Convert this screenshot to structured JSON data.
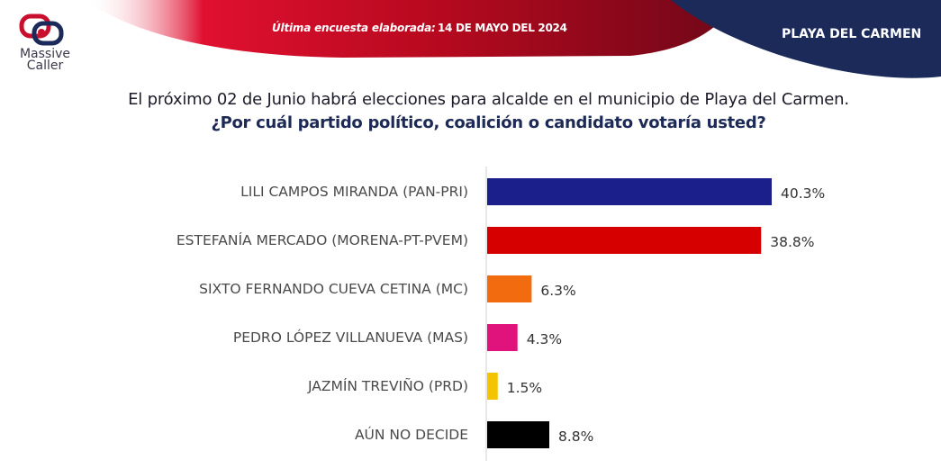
{
  "header": {
    "brand": "Massive\nCaller",
    "brand_line1": "Massive",
    "brand_line2": "Caller",
    "survey_label": "Última encuesta elaborada:",
    "survey_date": "14 DE MAYO DEL 2024",
    "city": "PLAYA DEL CARMEN"
  },
  "question": {
    "line1": "El próximo 02 de Junio habrá elecciones para alcalde en el municipio de  Playa del Carmen.",
    "line2": "¿Por cuál partido político, coalición o candidato votaría usted?"
  },
  "colors": {
    "banner_red": "#c8102e",
    "banner_dark_red": "#7a0a1e",
    "navy": "#1c2a5a"
  },
  "chart_data": {
    "type": "bar",
    "orientation": "horizontal",
    "categories": [
      "LILI CAMPOS MIRANDA (PAN-PRI)",
      "ESTEFANÍA MERCADO (MORENA-PT-PVEM)",
      "SIXTO FERNANDO CUEVA CETINA (MC)",
      "PEDRO LÓPEZ VILLANUEVA (MAS)",
      "JAZMÍN TREVIÑO (PRD)",
      "AÚN NO DECIDE"
    ],
    "values": [
      40.3,
      38.8,
      6.3,
      4.3,
      1.5,
      8.8
    ],
    "value_labels": [
      "40.3%",
      "38.8%",
      "6.3%",
      "4.3%",
      "1.5%",
      "8.8%"
    ],
    "bar_colors": [
      "#1a1f8c",
      "#d60000",
      "#f26b0f",
      "#e0137c",
      "#f5c400",
      "#000000"
    ],
    "unit": "%",
    "xlim": [
      0,
      40.3
    ],
    "grid": false,
    "legend": "none"
  }
}
